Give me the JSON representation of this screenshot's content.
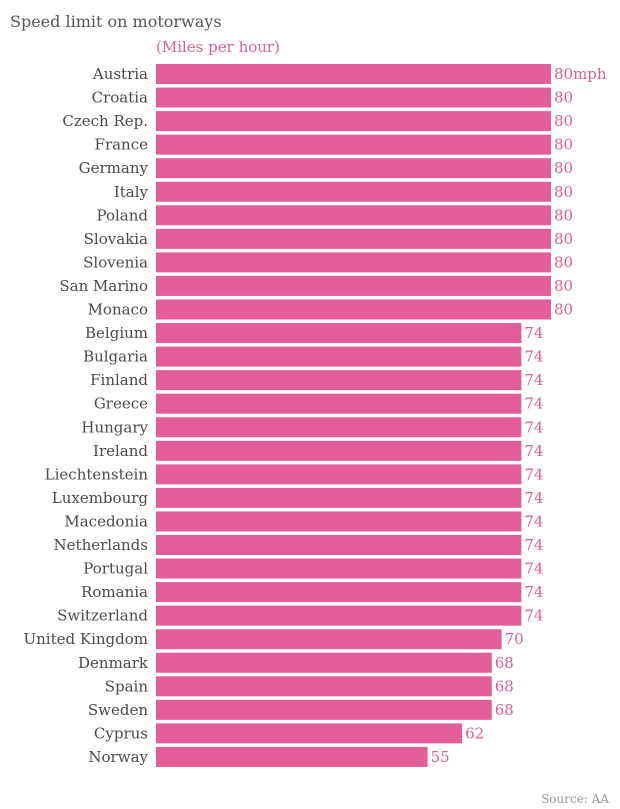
{
  "chart_data": {
    "type": "bar",
    "orientation": "horizontal",
    "title": "Speed limit on motorways",
    "subtitle": "(Miles per hour)",
    "source": "Source: AA",
    "value_suffix_first": "mph",
    "categories": [
      "Austria",
      "Croatia",
      "Czech Rep.",
      "France",
      "Germany",
      "Italy",
      "Poland",
      "Slovakia",
      "Slovenia",
      "San Marino",
      "Monaco",
      "Belgium",
      "Bulgaria",
      "Finland",
      "Greece",
      "Hungary",
      "Ireland",
      "Liechtenstein",
      "Luxembourg",
      "Macedonia",
      "Netherlands",
      "Portugal",
      "Romania",
      "Switzerland",
      "United Kingdom",
      "Denmark",
      "Spain",
      "Sweden",
      "Cyprus",
      "Norway"
    ],
    "values": [
      80,
      80,
      80,
      80,
      80,
      80,
      80,
      80,
      80,
      80,
      80,
      74,
      74,
      74,
      74,
      74,
      74,
      74,
      74,
      74,
      74,
      74,
      74,
      74,
      70,
      68,
      68,
      68,
      62,
      55
    ],
    "xlim": [
      0,
      80
    ],
    "grid": false,
    "bar_color": "#e35d98",
    "label_color": "#e05c99"
  }
}
